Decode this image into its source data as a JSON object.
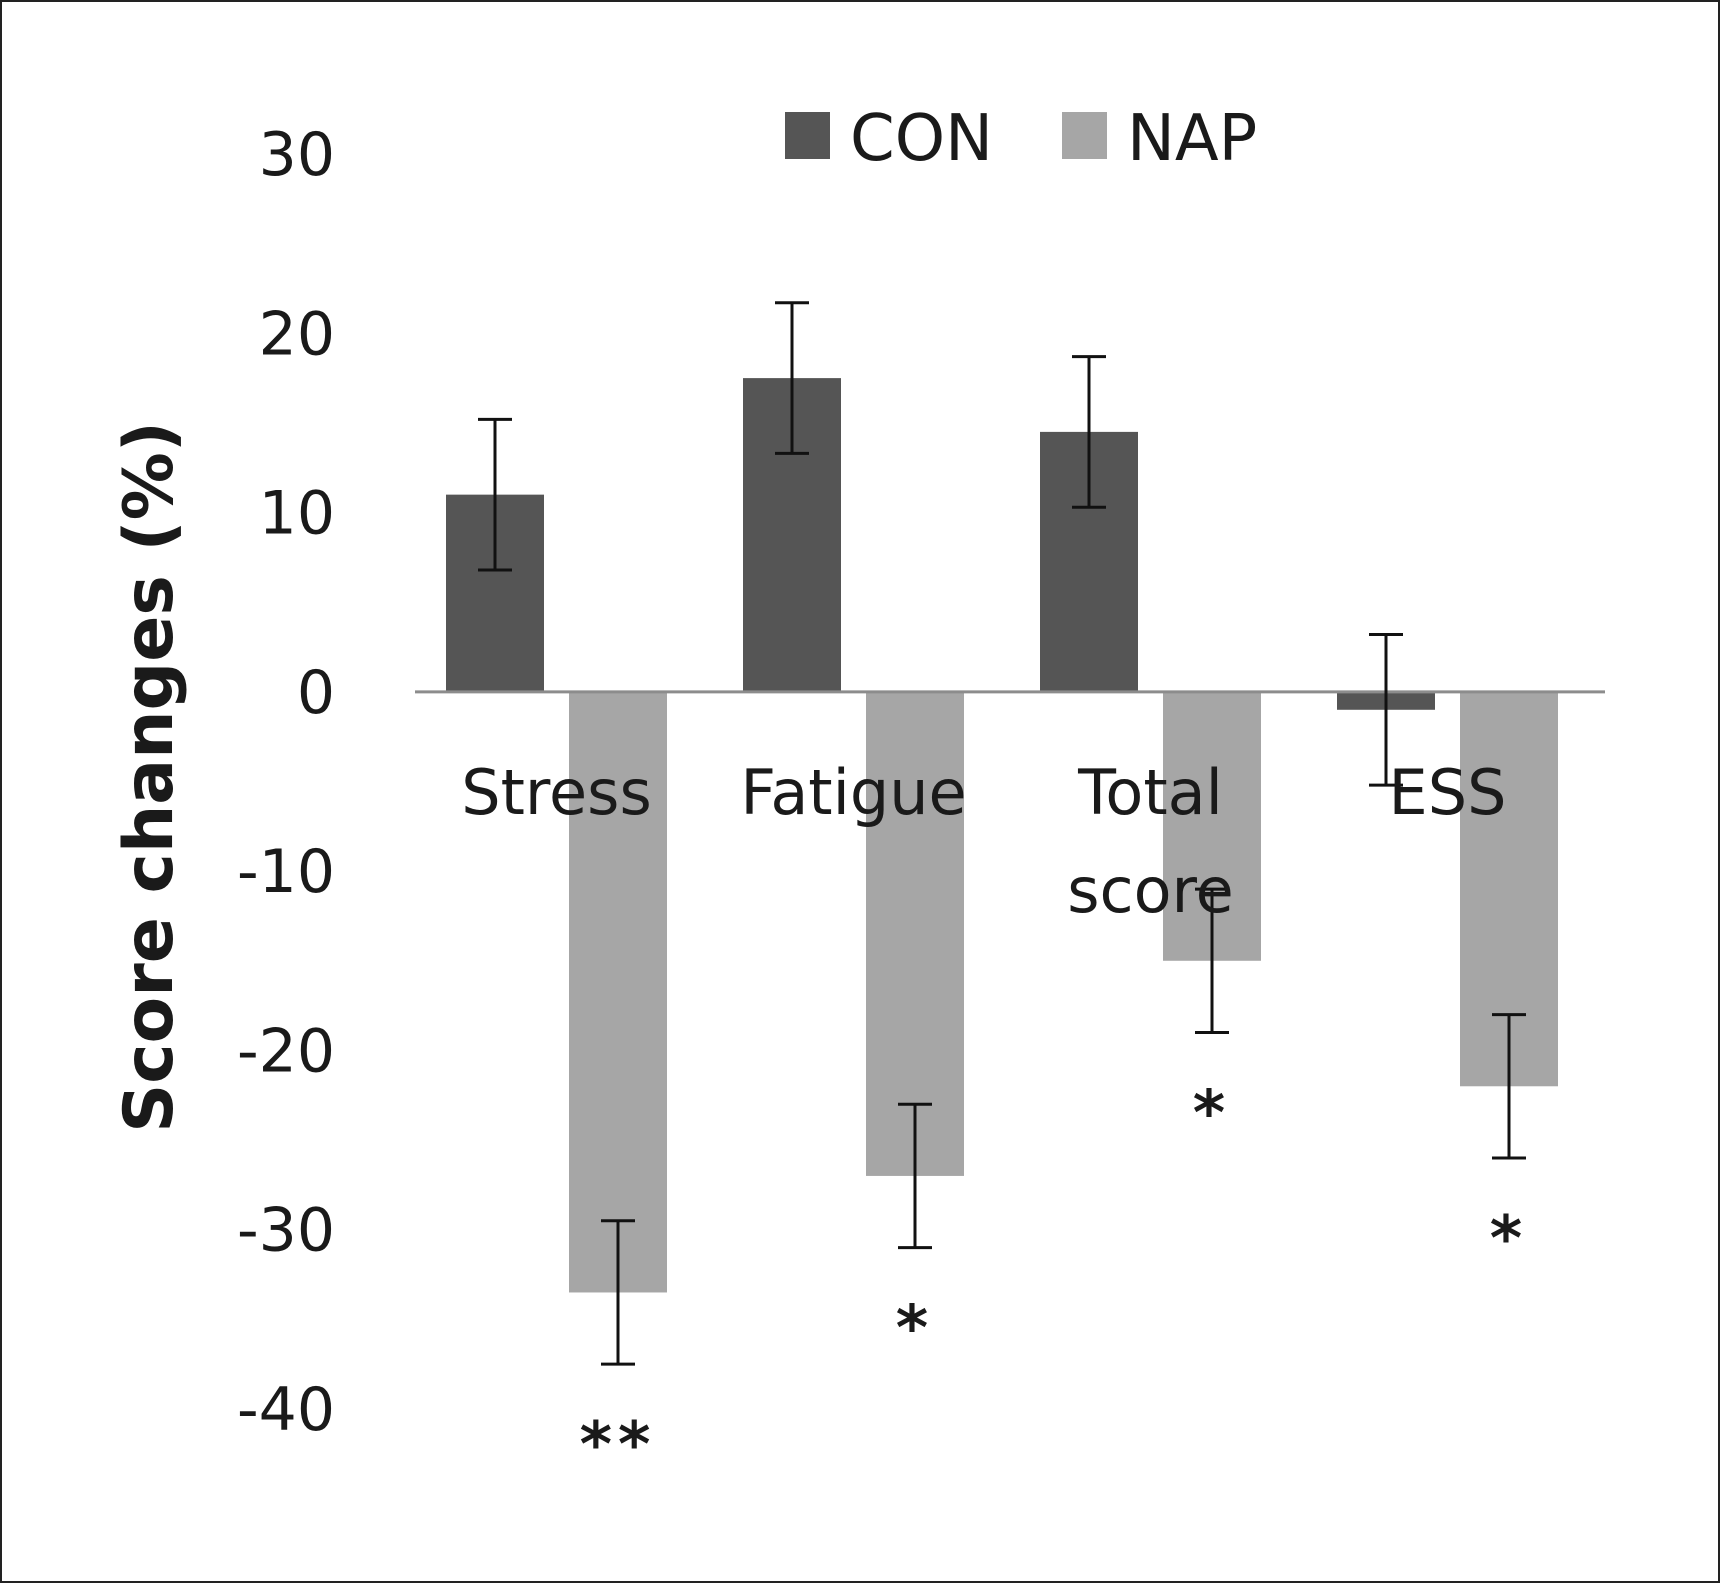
{
  "chart_data": {
    "type": "bar",
    "categories": [
      [
        "Stress"
      ],
      [
        "Fatigue"
      ],
      [
        "Total",
        "score"
      ],
      [
        "ESS"
      ]
    ],
    "ylabel": "Score changes (%)",
    "ylim": [
      -40,
      30
    ],
    "yticks": [
      30,
      20,
      10,
      0,
      -10,
      -20,
      -30,
      -40
    ],
    "grid": false,
    "legend_position": "top-center",
    "series": [
      {
        "name": "CON",
        "color": "#555555",
        "values": [
          11,
          17.5,
          14.5,
          -1
        ],
        "errors": [
          4.2,
          4.2,
          4.2,
          4.2
        ],
        "significance": [
          "",
          "",
          "",
          ""
        ]
      },
      {
        "name": "NAP",
        "color": "#a6a6a6",
        "values": [
          -33.5,
          -27,
          -15,
          -22
        ],
        "errors": [
          4,
          4,
          4,
          4
        ],
        "significance": [
          "**",
          "*",
          "*",
          "*"
        ]
      }
    ]
  }
}
